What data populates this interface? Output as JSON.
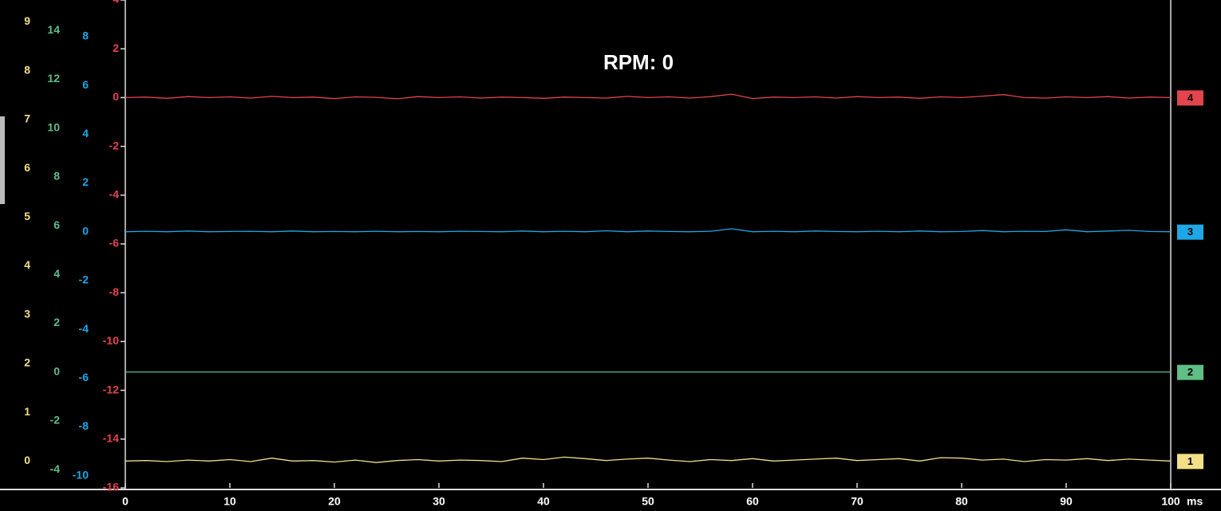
{
  "chart_data": {
    "type": "line",
    "title": "RPM: 0",
    "x": [
      0,
      2,
      4,
      6,
      8,
      10,
      12,
      14,
      16,
      18,
      20,
      22,
      24,
      26,
      28,
      30,
      32,
      34,
      36,
      38,
      40,
      42,
      44,
      46,
      48,
      50,
      52,
      54,
      56,
      58,
      60,
      62,
      64,
      66,
      68,
      70,
      72,
      74,
      76,
      78,
      80,
      82,
      84,
      86,
      88,
      90,
      92,
      94,
      96,
      98,
      100
    ],
    "xlim": [
      0,
      100
    ],
    "xticks": [
      0,
      10,
      20,
      30,
      40,
      50,
      60,
      70,
      80,
      90,
      100
    ],
    "x_unit": "ms",
    "series": [
      {
        "name": "1",
        "color": "#f3df86",
        "ylim": [
          -0.55,
          9.45
        ],
        "yticks": [
          0,
          1,
          2,
          3,
          4,
          5,
          6,
          7,
          8,
          9
        ],
        "values": [
          0,
          0.01,
          -0.01,
          0.02,
          0,
          0.03,
          -0.01,
          0.06,
          0,
          0.01,
          -0.02,
          0.02,
          -0.03,
          0.01,
          0.03,
          0,
          0.02,
          0.01,
          -0.01,
          0.06,
          0.03,
          0.08,
          0.05,
          0.01,
          0.04,
          0.06,
          0.02,
          -0.01,
          0.03,
          0.01,
          0.05,
          0,
          0.02,
          0.04,
          0.06,
          0.01,
          0.03,
          0.05,
          0,
          0.07,
          0.06,
          0.02,
          0.04,
          -0.01,
          0.03,
          0.02,
          0.05,
          0.01,
          0.04,
          0.02,
          0
        ]
      },
      {
        "name": "2",
        "color": "#5fbf85",
        "ylim": [
          -4.75,
          15.25
        ],
        "yticks": [
          -4,
          -2,
          0,
          2,
          4,
          6,
          8,
          10,
          12,
          14
        ],
        "values": [
          0,
          0,
          0,
          0,
          0,
          0,
          0,
          0,
          0,
          0,
          0,
          0,
          0,
          0,
          0,
          0,
          0,
          0,
          0,
          0,
          0,
          0,
          0,
          0,
          0,
          0,
          0,
          0,
          0,
          0,
          0,
          0,
          0,
          0,
          0,
          0,
          0,
          0,
          0,
          0,
          0,
          0,
          0,
          0,
          0,
          0,
          0,
          0,
          0,
          0,
          0
        ]
      },
      {
        "name": "3",
        "color": "#1ea7e4",
        "ylim": [
          -10.5,
          9.5
        ],
        "yticks": [
          -10,
          -8,
          -6,
          -4,
          -2,
          0,
          2,
          4,
          6,
          8
        ],
        "values": [
          0,
          0.02,
          0,
          0.03,
          0,
          0.01,
          0.02,
          0,
          0.03,
          0,
          0.01,
          0,
          0.02,
          0,
          0.01,
          0,
          0.02,
          0.01,
          0,
          0.03,
          0,
          0.02,
          0,
          0.04,
          0,
          0.03,
          0.01,
          0,
          0.02,
          0.12,
          0,
          0.02,
          0,
          0.03,
          0.01,
          0,
          0.02,
          0,
          0.03,
          0,
          0.01,
          0.05,
          0,
          0.02,
          0.01,
          0.08,
          0,
          0.03,
          0.06,
          0.01,
          0
        ]
      },
      {
        "name": "4",
        "color": "#e4444c",
        "ylim": [
          -16,
          4
        ],
        "yticks": [
          -16,
          -14,
          -12,
          -10,
          -8,
          -6,
          -4,
          -2,
          0,
          2,
          4
        ],
        "values": [
          0,
          0.02,
          -0.03,
          0.04,
          0,
          0.03,
          -0.02,
          0.05,
          0,
          0.02,
          -0.04,
          0.03,
          0.01,
          -0.05,
          0.04,
          0,
          0.03,
          -0.02,
          0.02,
          0,
          -0.03,
          0.02,
          0,
          -0.02,
          0.05,
          0,
          0.03,
          -0.02,
          0.04,
          0.14,
          -0.04,
          0.02,
          0,
          0.03,
          -0.02,
          0.04,
          0,
          0.02,
          -0.03,
          0.03,
          0,
          0.06,
          0.12,
          0,
          -0.02,
          0.03,
          0,
          0.04,
          -0.02,
          0.02,
          0
        ]
      }
    ]
  }
}
